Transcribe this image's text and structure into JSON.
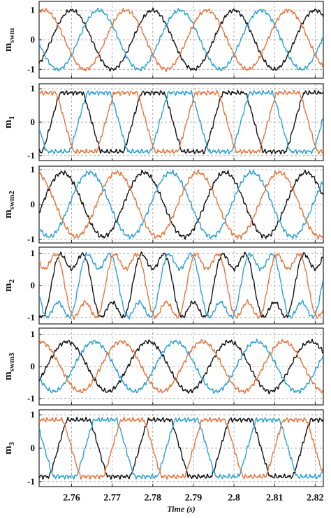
{
  "colors": {
    "series_a": "#111111",
    "series_b": "#2aa0d8",
    "series_c": "#e8743b",
    "grid": "#9a9a9a",
    "axis": "#222222"
  },
  "chart_data": [
    {
      "type": "line",
      "ylabel_main": "m",
      "ylabel_sub": "swm",
      "ylim": [
        -1.3,
        1.3
      ],
      "yticks": [
        -1,
        0,
        1
      ],
      "xlim": [
        2.752,
        2.822
      ],
      "xticks": [
        2.76,
        2.77,
        2.78,
        2.79,
        2.8,
        2.81,
        2.82
      ],
      "grid": true,
      "wave": "sine",
      "amplitude": 1.0,
      "frequency_hz": 50,
      "series": [
        {
          "color": "#111111",
          "phase_deg": 90
        },
        {
          "color": "#2aa0d8",
          "phase_deg": -30
        },
        {
          "color": "#e8743b",
          "phase_deg": 210
        }
      ]
    },
    {
      "type": "line",
      "ylabel_main": "m",
      "ylabel_sub": "1",
      "ylim": [
        -1.15,
        1.15
      ],
      "yticks": [
        -1,
        0,
        1
      ],
      "xlim": [
        2.752,
        2.822
      ],
      "xticks": [
        2.76,
        2.77,
        2.78,
        2.79,
        2.8,
        2.81,
        2.82
      ],
      "grid": true,
      "wave": "flattop",
      "amplitude": 0.88,
      "frequency_hz": 50,
      "series": [
        {
          "color": "#111111",
          "phase_deg": 90
        },
        {
          "color": "#2aa0d8",
          "phase_deg": -30
        },
        {
          "color": "#e8743b",
          "phase_deg": 210
        }
      ]
    },
    {
      "type": "line",
      "ylabel_main": "m",
      "ylabel_sub": "swm2",
      "ylim": [
        -1.1,
        1.1
      ],
      "yticks": [
        -1,
        0,
        1
      ],
      "xlim": [
        2.752,
        2.822
      ],
      "xticks": [
        2.76,
        2.77,
        2.78,
        2.79,
        2.8,
        2.81,
        2.82
      ],
      "grid": true,
      "wave": "sine",
      "amplitude": 0.92,
      "frequency_hz": 50,
      "series": [
        {
          "color": "#111111",
          "phase_deg": 130
        },
        {
          "color": "#2aa0d8",
          "phase_deg": 10
        },
        {
          "color": "#e8743b",
          "phase_deg": 250
        }
      ]
    },
    {
      "type": "line",
      "ylabel_main": "m",
      "ylabel_sub": "2",
      "ylim": [
        -1.2,
        1.2
      ],
      "yticks": [
        -1,
        0,
        1
      ],
      "xlim": [
        2.752,
        2.822
      ],
      "xticks": [
        2.76,
        2.77,
        2.78,
        2.79,
        2.8,
        2.81,
        2.82
      ],
      "grid": true,
      "wave": "thi",
      "amplitude": 0.95,
      "frequency_hz": 50,
      "series": [
        {
          "color": "#111111",
          "phase_deg": 90
        },
        {
          "color": "#2aa0d8",
          "phase_deg": -30
        },
        {
          "color": "#e8743b",
          "phase_deg": 210
        }
      ]
    },
    {
      "type": "line",
      "ylabel_main": "m",
      "ylabel_sub": "swm3",
      "ylim": [
        -1.2,
        1.2
      ],
      "yticks": [
        -1,
        0,
        1
      ],
      "xlim": [
        2.752,
        2.822
      ],
      "xticks": [
        2.76,
        2.77,
        2.78,
        2.79,
        2.8,
        2.81,
        2.82
      ],
      "grid": true,
      "wave": "sine",
      "amplitude": 0.78,
      "frequency_hz": 50,
      "series": [
        {
          "color": "#111111",
          "phase_deg": 110
        },
        {
          "color": "#2aa0d8",
          "phase_deg": -10
        },
        {
          "color": "#e8743b",
          "phase_deg": 230
        }
      ]
    },
    {
      "type": "line",
      "ylabel_main": "m",
      "ylabel_sub": "3",
      "ylim": [
        -1.15,
        1.15
      ],
      "yticks": [
        -1,
        0,
        1
      ],
      "xlim": [
        2.752,
        2.822
      ],
      "xticks": [
        2.76,
        2.77,
        2.78,
        2.79,
        2.8,
        2.81,
        2.82
      ],
      "xtick_labels": [
        "2.76",
        "2.77",
        "2.78",
        "2.79",
        "2.8",
        "2.81",
        "2.82"
      ],
      "xlabel": "Time (s)",
      "grid": true,
      "wave": "flattop",
      "amplitude": 0.85,
      "frequency_hz": 50,
      "series": [
        {
          "color": "#111111",
          "phase_deg": 60
        },
        {
          "color": "#2aa0d8",
          "phase_deg": -60
        },
        {
          "color": "#e8743b",
          "phase_deg": 180
        }
      ]
    }
  ]
}
